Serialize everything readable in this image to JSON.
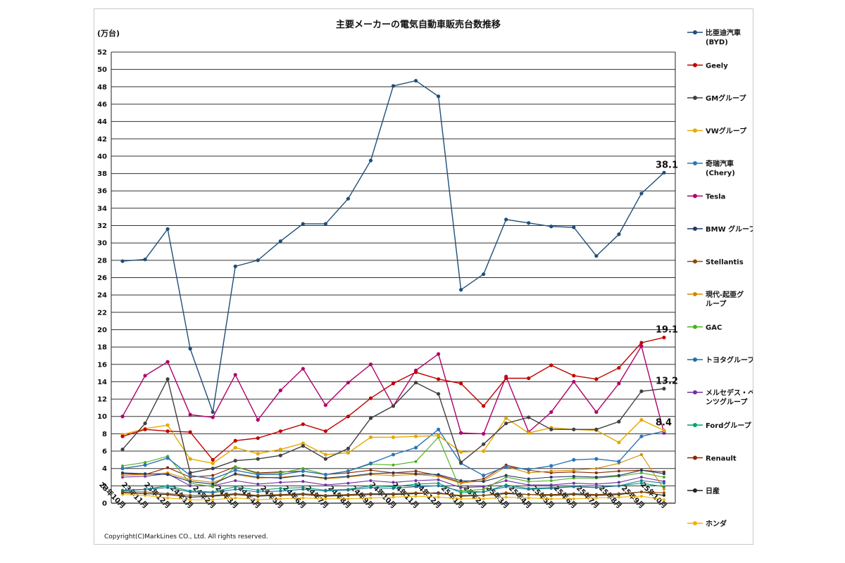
{
  "chart_data": {
    "type": "line",
    "title": "主要メーカーの電気自動車販売台数推移",
    "unit_label": "(万台)",
    "copyright": "Copyright(C)MarkLines CO., Ltd. All rights reserved.",
    "ylim": [
      0,
      52
    ],
    "yticks": [
      0,
      2,
      4,
      6,
      8,
      10,
      12,
      14,
      16,
      18,
      20,
      22,
      24,
      26,
      28,
      30,
      32,
      34,
      36,
      38,
      40,
      42,
      44,
      46,
      48,
      50,
      52
    ],
    "grid": true,
    "legend_position": "right",
    "categories": [
      "23年10月",
      "23年11月",
      "23年12月",
      "24年1月",
      "24年2月",
      "24年3月",
      "24年4月",
      "24年5月",
      "24年6月",
      "24年7月",
      "24年8月",
      "24年9月",
      "24年10月",
      "24年11月",
      "24年12月",
      "25年1月",
      "25年2月",
      "25年3月",
      "25年4月",
      "25年5月",
      "25年6月",
      "25年7月",
      "25年8月",
      "25年9月",
      "25年10月"
    ],
    "series": [
      {
        "name": "比亜迪汽車\n(BYD)",
        "color": "#1f4e79",
        "values": [
          27.9,
          28.1,
          31.6,
          17.8,
          10.5,
          27.3,
          28.0,
          30.2,
          32.2,
          32.2,
          35.1,
          39.5,
          48.1,
          48.7,
          46.9,
          24.6,
          26.4,
          32.7,
          32.3,
          31.9,
          31.8,
          28.5,
          31.0,
          35.7,
          38.1
        ]
      },
      {
        "name": "Geely",
        "color": "#c00000",
        "values": [
          7.7,
          8.5,
          8.3,
          8.2,
          5.0,
          7.2,
          7.5,
          8.3,
          9.1,
          8.3,
          10.0,
          12.1,
          13.8,
          15.1,
          14.3,
          13.8,
          11.2,
          14.4,
          14.4,
          15.9,
          14.7,
          14.3,
          15.6,
          18.5,
          19.1
        ]
      },
      {
        "name": "GMグループ",
        "color": "#404040",
        "values": [
          6.2,
          9.2,
          14.3,
          3.5,
          4.0,
          4.9,
          5.1,
          5.5,
          6.6,
          5.1,
          6.3,
          9.8,
          11.2,
          13.9,
          12.6,
          4.7,
          6.8,
          9.2,
          9.9,
          8.5,
          8.5,
          8.5,
          9.4,
          12.9,
          13.2
        ]
      },
      {
        "name": "VWグループ",
        "color": "#e6a800",
        "values": [
          7.9,
          8.6,
          9.0,
          5.1,
          4.6,
          6.4,
          5.7,
          6.2,
          6.9,
          5.6,
          5.8,
          7.6,
          7.6,
          7.7,
          7.8,
          5.9,
          6.0,
          9.8,
          8.1,
          8.7,
          8.5,
          8.4,
          7.0,
          9.6,
          8.4
        ]
      },
      {
        "name": "奇瑞汽車\n(Chery)",
        "color": "#2e75b6",
        "values": [
          4.0,
          4.4,
          5.2,
          3.2,
          2.8,
          3.8,
          3.3,
          3.3,
          3.7,
          3.3,
          3.7,
          4.6,
          5.6,
          6.4,
          8.5,
          4.6,
          3.2,
          4.2,
          3.9,
          4.3,
          5.0,
          5.1,
          4.8,
          7.7,
          8.3
        ]
      },
      {
        "name": "Tesla",
        "color": "#b0006a",
        "values": [
          10.0,
          14.7,
          16.3,
          10.2,
          9.9,
          14.8,
          9.6,
          13.0,
          15.5,
          11.3,
          13.9,
          16.0,
          11.2,
          15.3,
          17.2,
          8.1,
          8.0,
          14.6,
          8.2,
          10.5,
          14.0,
          10.5,
          13.8,
          18.1,
          8.1
        ]
      },
      {
        "name": "BMW グループ",
        "color": "#203864",
        "values": [
          3.5,
          3.4,
          3.3,
          2.5,
          2.2,
          3.4,
          3.0,
          2.9,
          3.2,
          2.9,
          3.1,
          3.4,
          3.5,
          3.4,
          3.3,
          2.6,
          2.5,
          3.2,
          2.8,
          3.0,
          3.1,
          3.0,
          3.2,
          3.8,
          3.4
        ]
      },
      {
        "name": "Stellantis",
        "color": "#8b4a00",
        "values": [
          1.3,
          1.3,
          1.1,
          0.9,
          0.9,
          1.1,
          0.9,
          1.0,
          1.1,
          0.9,
          1.0,
          1.1,
          1.1,
          1.2,
          1.1,
          0.9,
          0.9,
          1.2,
          1.0,
          1.0,
          1.1,
          1.0,
          1.1,
          1.3,
          1.2
        ]
      },
      {
        "name": "現代-起亜グ\nループ",
        "color": "#d08a00",
        "values": [
          3.2,
          3.3,
          3.5,
          2.7,
          2.4,
          3.3,
          2.9,
          3.0,
          3.2,
          2.8,
          3.0,
          3.3,
          3.2,
          3.3,
          3.1,
          2.3,
          2.6,
          4.2,
          3.5,
          3.7,
          3.8,
          4.0,
          4.6,
          5.6,
          1.6
        ]
      },
      {
        "name": "GAC",
        "color": "#4caf1e",
        "values": [
          4.3,
          4.7,
          5.4,
          2.3,
          1.9,
          4.2,
          3.4,
          3.5,
          4.0,
          3.3,
          3.7,
          4.5,
          4.4,
          4.8,
          7.6,
          1.4,
          1.6,
          3.0,
          2.5,
          2.6,
          2.9,
          2.9,
          3.1,
          3.5,
          3.0
        ]
      },
      {
        "name": "トヨタグループ",
        "color": "#1f6f9f",
        "values": [
          1.4,
          1.6,
          1.8,
          1.3,
          1.2,
          1.6,
          1.3,
          1.4,
          1.6,
          1.4,
          1.5,
          1.8,
          1.7,
          1.9,
          2.0,
          1.4,
          1.3,
          1.9,
          1.6,
          1.7,
          1.9,
          1.8,
          2.0,
          2.6,
          2.3
        ]
      },
      {
        "name": "メルセデス・ベ\nンツグループ",
        "color": "#7030a0",
        "values": [
          3.0,
          3.1,
          3.4,
          2.0,
          2.0,
          2.6,
          2.2,
          2.4,
          2.5,
          2.1,
          2.3,
          2.6,
          2.4,
          2.6,
          2.7,
          1.8,
          1.9,
          2.6,
          2.1,
          2.1,
          2.3,
          2.2,
          2.4,
          3.0,
          2.5
        ]
      },
      {
        "name": "Fordグループ",
        "color": "#00a070",
        "values": [
          1.5,
          1.6,
          2.0,
          1.4,
          1.3,
          1.9,
          1.5,
          1.7,
          1.8,
          1.5,
          1.6,
          2.0,
          1.9,
          2.2,
          2.3,
          1.2,
          1.3,
          2.1,
          1.7,
          1.8,
          1.9,
          1.8,
          2.0,
          2.3,
          1.9
        ]
      },
      {
        "name": "Renault",
        "color": "#8b2500",
        "values": [
          3.4,
          3.3,
          4.1,
          3.0,
          3.2,
          4.2,
          3.5,
          3.6,
          3.7,
          3.3,
          3.5,
          3.8,
          3.5,
          3.7,
          3.2,
          2.4,
          2.8,
          4.4,
          3.8,
          3.5,
          3.6,
          3.5,
          3.7,
          3.8,
          3.6
        ]
      },
      {
        "name": "日産",
        "color": "#202020",
        "values": [
          1.2,
          1.1,
          1.0,
          0.7,
          0.8,
          1.0,
          0.8,
          0.9,
          1.0,
          0.8,
          0.9,
          1.0,
          1.0,
          1.1,
          1.2,
          0.8,
          0.9,
          1.1,
          1.0,
          0.9,
          1.0,
          0.9,
          1.0,
          1.3,
          0.9
        ]
      },
      {
        "name": "ホンダ",
        "color": "#f0b400",
        "values": [
          1.0,
          0.9,
          0.6,
          0.4,
          0.4,
          0.6,
          0.4,
          0.5,
          0.6,
          0.5,
          0.5,
          0.6,
          0.7,
          0.8,
          0.7,
          0.5,
          0.5,
          0.7,
          0.6,
          0.5,
          0.5,
          0.6,
          0.7,
          0.8,
          0.4
        ]
      }
    ],
    "end_labels": [
      {
        "series": 0,
        "text": "38.1"
      },
      {
        "series": 1,
        "text": "19.1"
      },
      {
        "series": 2,
        "text": "13.2"
      },
      {
        "series": 3,
        "text": "8.4"
      }
    ]
  }
}
